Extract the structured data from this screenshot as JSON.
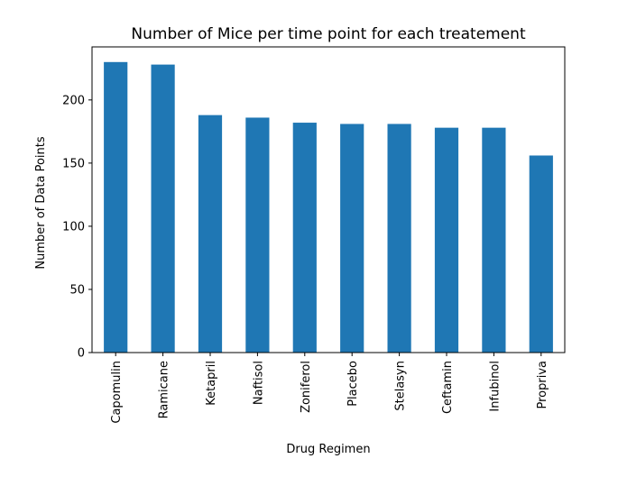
{
  "chart_data": {
    "type": "bar",
    "title": "Number of Mice per time point for each treatement",
    "xlabel": "Drug Regimen",
    "ylabel": "Number of Data Points",
    "categories": [
      "Capomulin",
      "Ramicane",
      "Ketapril",
      "Naftisol",
      "Zoniferol",
      "Placebo",
      "Stelasyn",
      "Ceftamin",
      "Infubinol",
      "Propriva"
    ],
    "values": [
      230,
      228,
      188,
      186,
      182,
      181,
      181,
      178,
      178,
      156
    ],
    "ylim": [
      0,
      242
    ],
    "yticks": [
      0,
      50,
      100,
      150,
      200
    ],
    "bar_color": "#1f77b4",
    "grid": false,
    "legend": false
  }
}
